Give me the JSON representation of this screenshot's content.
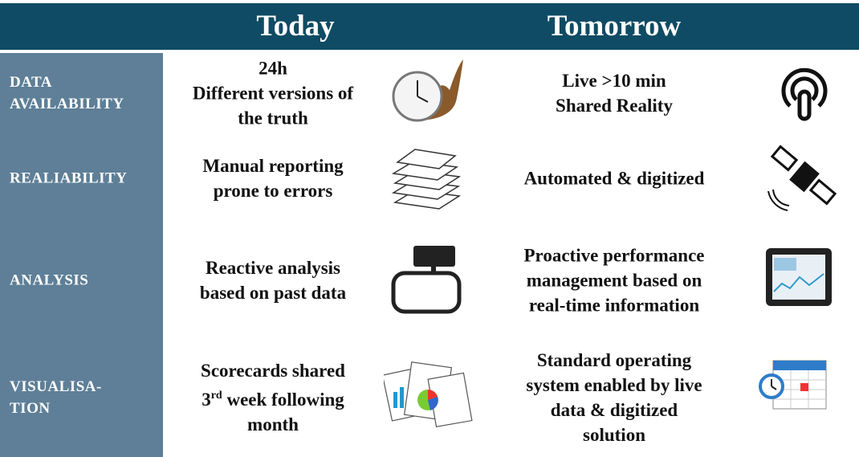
{
  "header": {
    "columns": [
      "Today",
      "Tomorrow"
    ]
  },
  "rows": [
    {
      "label": [
        "DATA",
        "AVAILABILITY"
      ],
      "today": [
        "24h",
        "Different versions of",
        "the truth"
      ],
      "tomorrow": [
        "Live >10 min",
        "Shared Reality"
      ]
    },
    {
      "label": [
        "REALIABILITY"
      ],
      "today": [
        "Manual reporting",
        "prone to errors"
      ],
      "tomorrow": [
        "Automated & digitized"
      ]
    },
    {
      "label": [
        "ANALYSIS"
      ],
      "today": [
        "Reactive analysis",
        "based on past data"
      ],
      "tomorrow": [
        "Proactive performance",
        "management based on",
        "real-time information"
      ]
    },
    {
      "label": [
        "VISUALISA-",
        "TION"
      ],
      "today": [
        "Scorecards shared",
        [
          "3",
          "rd",
          " week following"
        ],
        "month"
      ],
      "tomorrow": [
        "Standard operating",
        "system enabled by live",
        "data & digitized",
        "solution"
      ]
    }
  ]
}
